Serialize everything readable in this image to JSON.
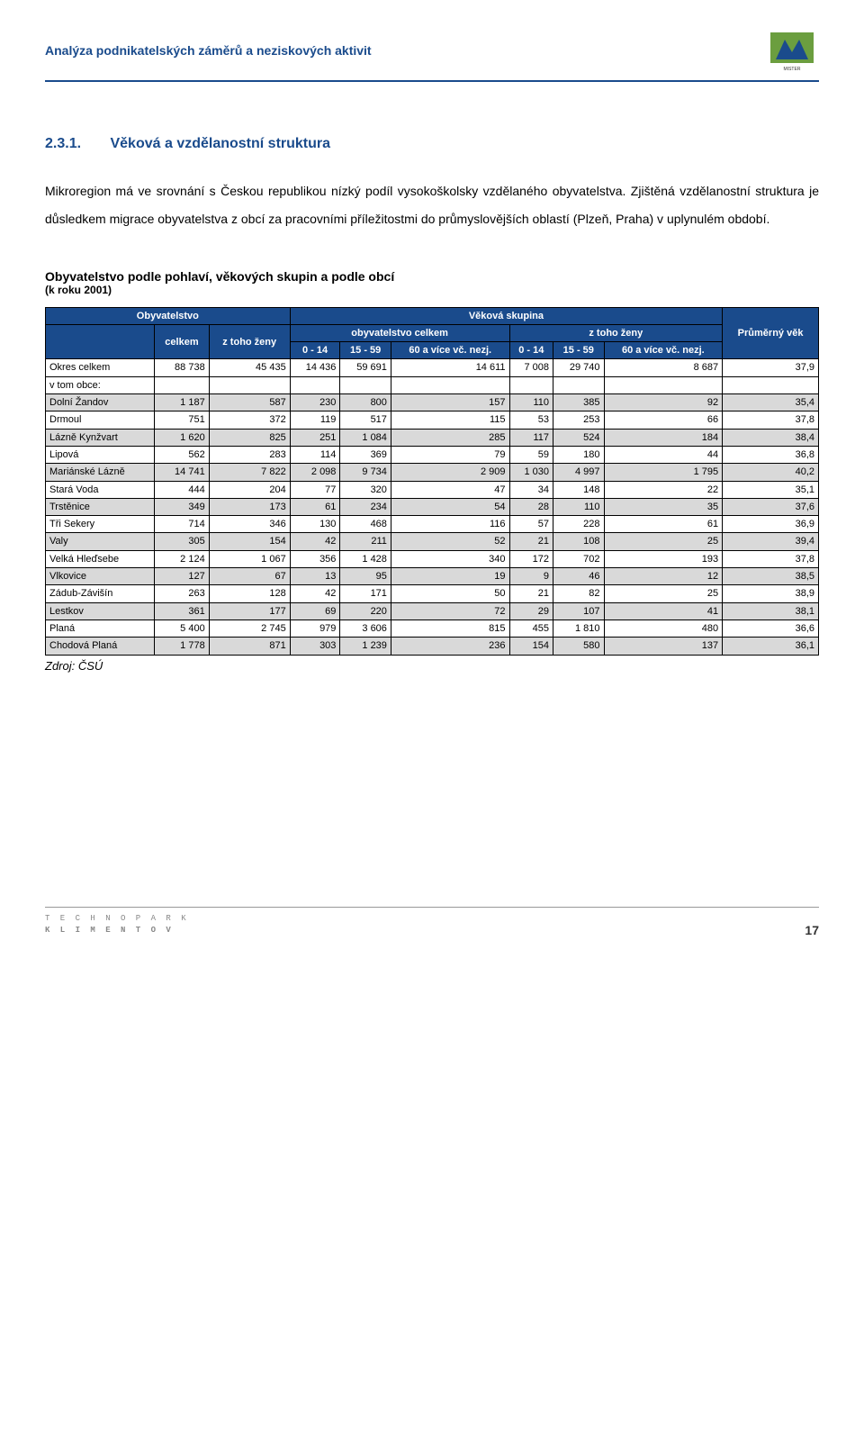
{
  "header": {
    "title": "Analýza podnikatelských záměrů a neziskových aktivit",
    "logo_caption": "Military and Industrial SITEs Reuse"
  },
  "section": {
    "number": "2.3.1.",
    "title": "Věková a vzdělanostní struktura",
    "para1": "Mikroregion má ve srovnání s Českou republikou nízký podíl vysokoškolsky vzdělaného obyvatelstva. Zjištěná vzdělanostní struktura je důsledkem migrace obyvatelstva z obcí za pracovními příležitostmi do průmyslovějších oblastí (Plzeň, Praha) v uplynulém období."
  },
  "table": {
    "title": "Obyvatelstvo podle pohlaví, věkových skupin a podle obcí",
    "subtitle": "(k roku 2001)",
    "header_main1": "Obyvatelstvo",
    "header_main2": "Věková skupina",
    "header_celkem": "celkem",
    "header_ztoho_zeny": "z toho ženy",
    "header_obyv_celkem": "obyvatelstvo celkem",
    "header_ztoho_zeny2": "z toho ženy",
    "header_prumerny_vek": "Průměrný věk",
    "col_0_14": "0 - 14",
    "col_15_59": "15 - 59",
    "col_60a": "60 a více vč. nezj.",
    "rows": [
      {
        "label": "Okres celkem",
        "c": [
          "88 738",
          "45 435",
          "14 436",
          "59 691",
          "14 611",
          "7 008",
          "29 740",
          "8 687",
          "37,9"
        ],
        "shaded": false
      },
      {
        "label": "v tom obce:",
        "c": [
          "",
          "",
          "",
          "",
          "",
          "",
          "",
          "",
          ""
        ],
        "shaded": false
      },
      {
        "label": "Dolní Žandov",
        "c": [
          "1 187",
          "587",
          "230",
          "800",
          "157",
          "110",
          "385",
          "92",
          "35,4"
        ],
        "shaded": true
      },
      {
        "label": "Drmoul",
        "c": [
          "751",
          "372",
          "119",
          "517",
          "115",
          "53",
          "253",
          "66",
          "37,8"
        ],
        "shaded": false
      },
      {
        "label": "Lázně Kynžvart",
        "c": [
          "1 620",
          "825",
          "251",
          "1 084",
          "285",
          "117",
          "524",
          "184",
          "38,4"
        ],
        "shaded": true
      },
      {
        "label": "Lipová",
        "c": [
          "562",
          "283",
          "114",
          "369",
          "79",
          "59",
          "180",
          "44",
          "36,8"
        ],
        "shaded": false
      },
      {
        "label": "Mariánské Lázně",
        "c": [
          "14 741",
          "7 822",
          "2 098",
          "9 734",
          "2 909",
          "1 030",
          "4 997",
          "1 795",
          "40,2"
        ],
        "shaded": true
      },
      {
        "label": "Stará Voda",
        "c": [
          "444",
          "204",
          "77",
          "320",
          "47",
          "34",
          "148",
          "22",
          "35,1"
        ],
        "shaded": false
      },
      {
        "label": "Trstěnice",
        "c": [
          "349",
          "173",
          "61",
          "234",
          "54",
          "28",
          "110",
          "35",
          "37,6"
        ],
        "shaded": true
      },
      {
        "label": "Tři Sekery",
        "c": [
          "714",
          "346",
          "130",
          "468",
          "116",
          "57",
          "228",
          "61",
          "36,9"
        ],
        "shaded": false
      },
      {
        "label": "Valy",
        "c": [
          "305",
          "154",
          "42",
          "211",
          "52",
          "21",
          "108",
          "25",
          "39,4"
        ],
        "shaded": true
      },
      {
        "label": "Velká Hleďsebe",
        "c": [
          "2 124",
          "1 067",
          "356",
          "1 428",
          "340",
          "172",
          "702",
          "193",
          "37,8"
        ],
        "shaded": false
      },
      {
        "label": "Vlkovice",
        "c": [
          "127",
          "67",
          "13",
          "95",
          "19",
          "9",
          "46",
          "12",
          "38,5"
        ],
        "shaded": true
      },
      {
        "label": "Zádub-Závišín",
        "c": [
          "263",
          "128",
          "42",
          "171",
          "50",
          "21",
          "82",
          "25",
          "38,9"
        ],
        "shaded": false
      },
      {
        "label": "Lestkov",
        "c": [
          "361",
          "177",
          "69",
          "220",
          "72",
          "29",
          "107",
          "41",
          "38,1"
        ],
        "shaded": true
      },
      {
        "label": "Planá",
        "c": [
          "5 400",
          "2 745",
          "979",
          "3 606",
          "815",
          "455",
          "1 810",
          "480",
          "36,6"
        ],
        "shaded": false
      },
      {
        "label": "Chodová Planá",
        "c": [
          "1 778",
          "871",
          "303",
          "1 239",
          "236",
          "154",
          "580",
          "137",
          "36,1"
        ],
        "shaded": true
      }
    ],
    "source": "Zdroj: ČSÚ"
  },
  "footer": {
    "logo_line1": "T E C H N O P A R K",
    "logo_line2": "K L I M E N T O V",
    "page": "17"
  }
}
